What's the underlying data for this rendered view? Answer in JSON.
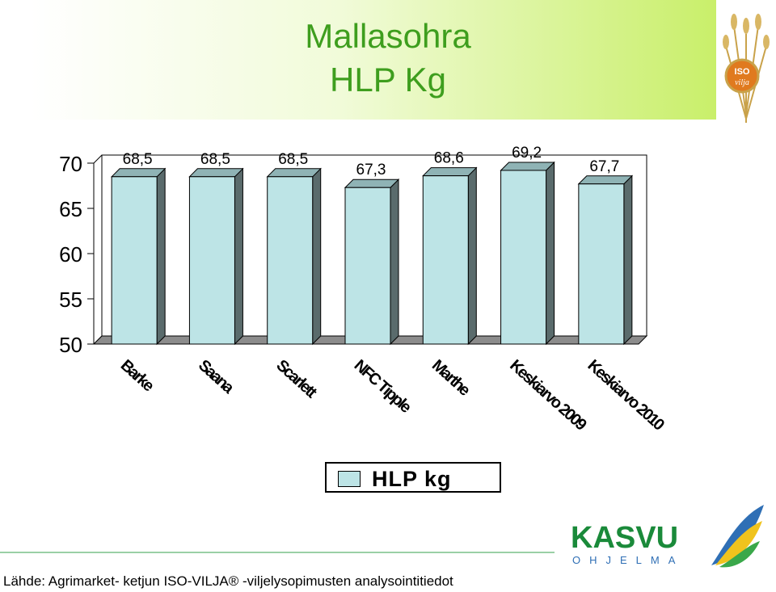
{
  "title": {
    "line1": "Mallasohra",
    "line2": "HLP Kg"
  },
  "chart_data": {
    "type": "bar",
    "categories": [
      "Barke",
      "Saana",
      "Scarlett",
      "NFC Tipple",
      "Marthe",
      "Keskiarvo 2009",
      "Keskiarvo 2010"
    ],
    "series": [
      {
        "name": "HLP kg",
        "values": [
          68.5,
          68.5,
          68.5,
          67.3,
          68.6,
          69.2,
          67.7
        ]
      }
    ],
    "data_labels": [
      "68,5",
      "68,5",
      "68,5",
      "67,3",
      "68,6",
      "69,2",
      "67,7"
    ],
    "ylim": [
      50,
      70
    ],
    "yticks": [
      50,
      55,
      60,
      65,
      70
    ],
    "bar_color": "#bde4e6",
    "bar_side_color": "#5a6b6c",
    "floor_color": "#8c8c8c",
    "legend_position": "bottom-center",
    "grid": false
  },
  "legend": {
    "label": "HLP kg"
  },
  "logos": {
    "iso": "ISO vilja",
    "kasvu_main": "KASVU",
    "kasvu_sub": "OHJELMA"
  },
  "source": "Lähde: Agrimarket- ketjun ISO-VILJA® -viljelysopimusten analysointitiedot"
}
